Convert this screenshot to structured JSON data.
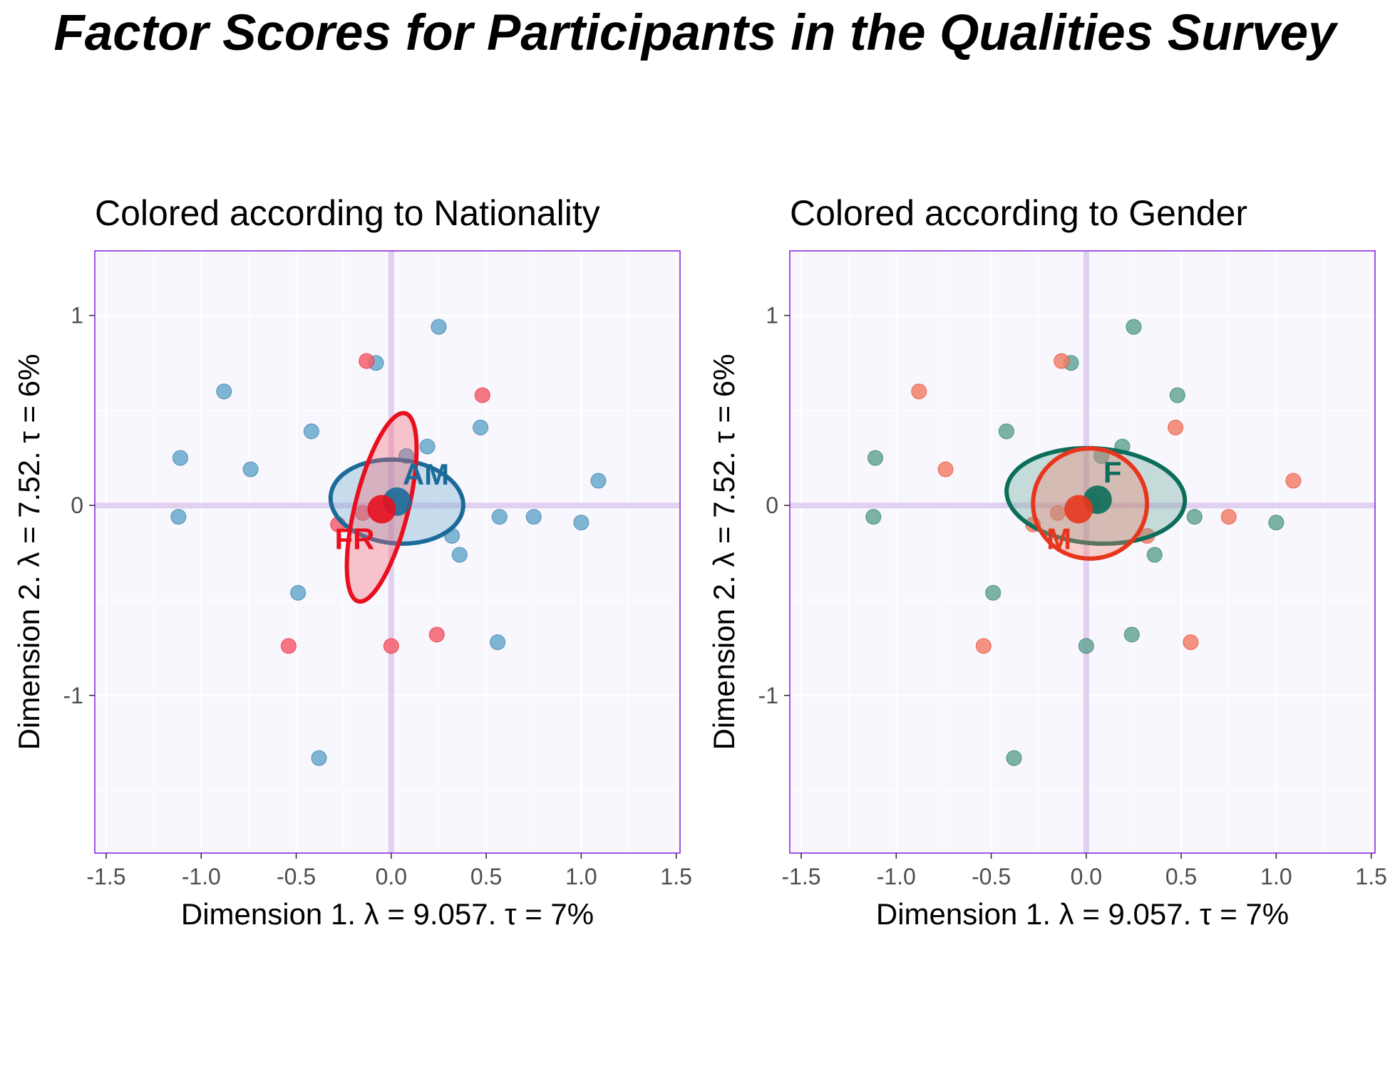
{
  "title": "Factor Scores for Participants in the Qualities Survey",
  "colors": {
    "panel_background": "#f8f7fd",
    "panel_border": "#8a2be2",
    "grid": "#ffffff",
    "origin_axes": "#e2d0f0",
    "nationality_AM": "#1b6b98",
    "nationality_AM_point": "#6aa9cc",
    "nationality_FR": "#e8101e",
    "nationality_FR_point": "#f46070",
    "gender_F": "#0c6e5a",
    "gender_F_point": "#66a597",
    "gender_M": "#e8361e",
    "gender_M_point": "#f2806b"
  },
  "chart_data": [
    {
      "type": "scatter",
      "title": "Colored according to Nationality",
      "xlabel": "Dimension 1.   λ = 9.057.  τ = 7%",
      "ylabel": "Dimension 2.   λ = 7.52.  τ = 6%",
      "xlim": [
        -1.56,
        1.52
      ],
      "ylim": [
        -1.83,
        1.34
      ],
      "xticks": [
        -1.5,
        -1.0,
        -0.5,
        0.0,
        0.5,
        1.0,
        1.5
      ],
      "xtick_labels": [
        "-1.5",
        "-1.0",
        "-0.5",
        "0.0",
        "0.5",
        "1.0",
        "1.5"
      ],
      "yticks": [
        1,
        0,
        -1
      ],
      "ytick_labels": [
        "1",
        "0",
        "-1"
      ],
      "grid": true,
      "series": [
        {
          "name": "AM",
          "color": "#6aa9cc",
          "points": [
            [
              0.25,
              0.94
            ],
            [
              -0.88,
              0.6
            ],
            [
              -1.11,
              0.25
            ],
            [
              -0.74,
              0.19
            ],
            [
              -0.42,
              0.39
            ],
            [
              0.47,
              0.41
            ],
            [
              0.19,
              0.31
            ],
            [
              0.08,
              0.26
            ],
            [
              1.09,
              0.13
            ],
            [
              -1.12,
              -0.06
            ],
            [
              0.57,
              -0.06
            ],
            [
              0.75,
              -0.06
            ],
            [
              1.0,
              -0.09
            ],
            [
              0.32,
              -0.16
            ],
            [
              0.36,
              -0.26
            ],
            [
              -0.49,
              -0.46
            ],
            [
              0.56,
              -0.72
            ],
            [
              -0.38,
              -1.33
            ],
            [
              -0.08,
              0.75
            ]
          ],
          "mean": [
            0.03,
            0.02
          ],
          "ellipse": {
            "center": [
              0.03,
              0.02
            ],
            "rx": 0.35,
            "ry": 0.22,
            "angle_deg": -5
          },
          "label": "AM"
        },
        {
          "name": "FR",
          "color": "#f46070",
          "points": [
            [
              -0.13,
              0.76
            ],
            [
              0.48,
              0.58
            ],
            [
              -0.28,
              -0.1
            ],
            [
              -0.15,
              -0.04
            ],
            [
              0.24,
              -0.68
            ],
            [
              -0.54,
              -0.74
            ],
            [
              0.0,
              -0.74
            ]
          ],
          "mean": [
            -0.05,
            -0.02
          ],
          "ellipse": {
            "center": [
              -0.05,
              -0.01
            ],
            "rx": 0.51,
            "ry": 0.14,
            "angle_deg": 76
          },
          "label": "FR"
        }
      ]
    },
    {
      "type": "scatter",
      "title": "Colored according to Gender",
      "xlabel": "Dimension 1.   λ = 9.057.  τ = 7%",
      "ylabel": "Dimension 2.   λ = 7.52.  τ = 6%",
      "xlim": [
        -1.56,
        1.52
      ],
      "ylim": [
        -1.83,
        1.34
      ],
      "xticks": [
        -1.5,
        -1.0,
        -0.5,
        0.0,
        0.5,
        1.0,
        1.5
      ],
      "xtick_labels": [
        "-1.5",
        "-1.0",
        "-0.5",
        "0.0",
        "0.5",
        "1.0",
        "1.5"
      ],
      "yticks": [
        1,
        0,
        -1
      ],
      "ytick_labels": [
        "1",
        "0",
        "-1"
      ],
      "grid": true,
      "series": [
        {
          "name": "F",
          "color": "#66a597",
          "points": [
            [
              0.25,
              0.94
            ],
            [
              -0.08,
              0.75
            ],
            [
              0.48,
              0.58
            ],
            [
              -0.42,
              0.39
            ],
            [
              0.19,
              0.31
            ],
            [
              0.08,
              0.26
            ],
            [
              -1.11,
              0.25
            ],
            [
              0.04,
              0.02
            ],
            [
              -1.12,
              -0.06
            ],
            [
              0.57,
              -0.06
            ],
            [
              1.0,
              -0.09
            ],
            [
              0.36,
              -0.26
            ],
            [
              -0.49,
              -0.46
            ],
            [
              0.24,
              -0.68
            ],
            [
              0.0,
              -0.74
            ],
            [
              -0.38,
              -1.33
            ]
          ],
          "mean": [
            0.06,
            0.03
          ],
          "ellipse": {
            "center": [
              0.05,
              0.05
            ],
            "rx": 0.47,
            "ry": 0.25,
            "angle_deg": -4
          },
          "label": "F"
        },
        {
          "name": "M",
          "color": "#f2806b",
          "points": [
            [
              -0.13,
              0.76
            ],
            [
              -0.88,
              0.6
            ],
            [
              0.47,
              0.41
            ],
            [
              -0.74,
              0.19
            ],
            [
              1.09,
              0.13
            ],
            [
              -0.15,
              -0.04
            ],
            [
              0.75,
              -0.06
            ],
            [
              -0.28,
              -0.1
            ],
            [
              0.32,
              -0.16
            ],
            [
              0.55,
              -0.72
            ],
            [
              -0.54,
              -0.74
            ]
          ],
          "mean": [
            -0.04,
            -0.02
          ],
          "ellipse": {
            "center": [
              0.02,
              0.01
            ],
            "rx": 0.3,
            "ry": 0.29,
            "angle_deg": 0
          },
          "label": "M"
        }
      ]
    }
  ]
}
